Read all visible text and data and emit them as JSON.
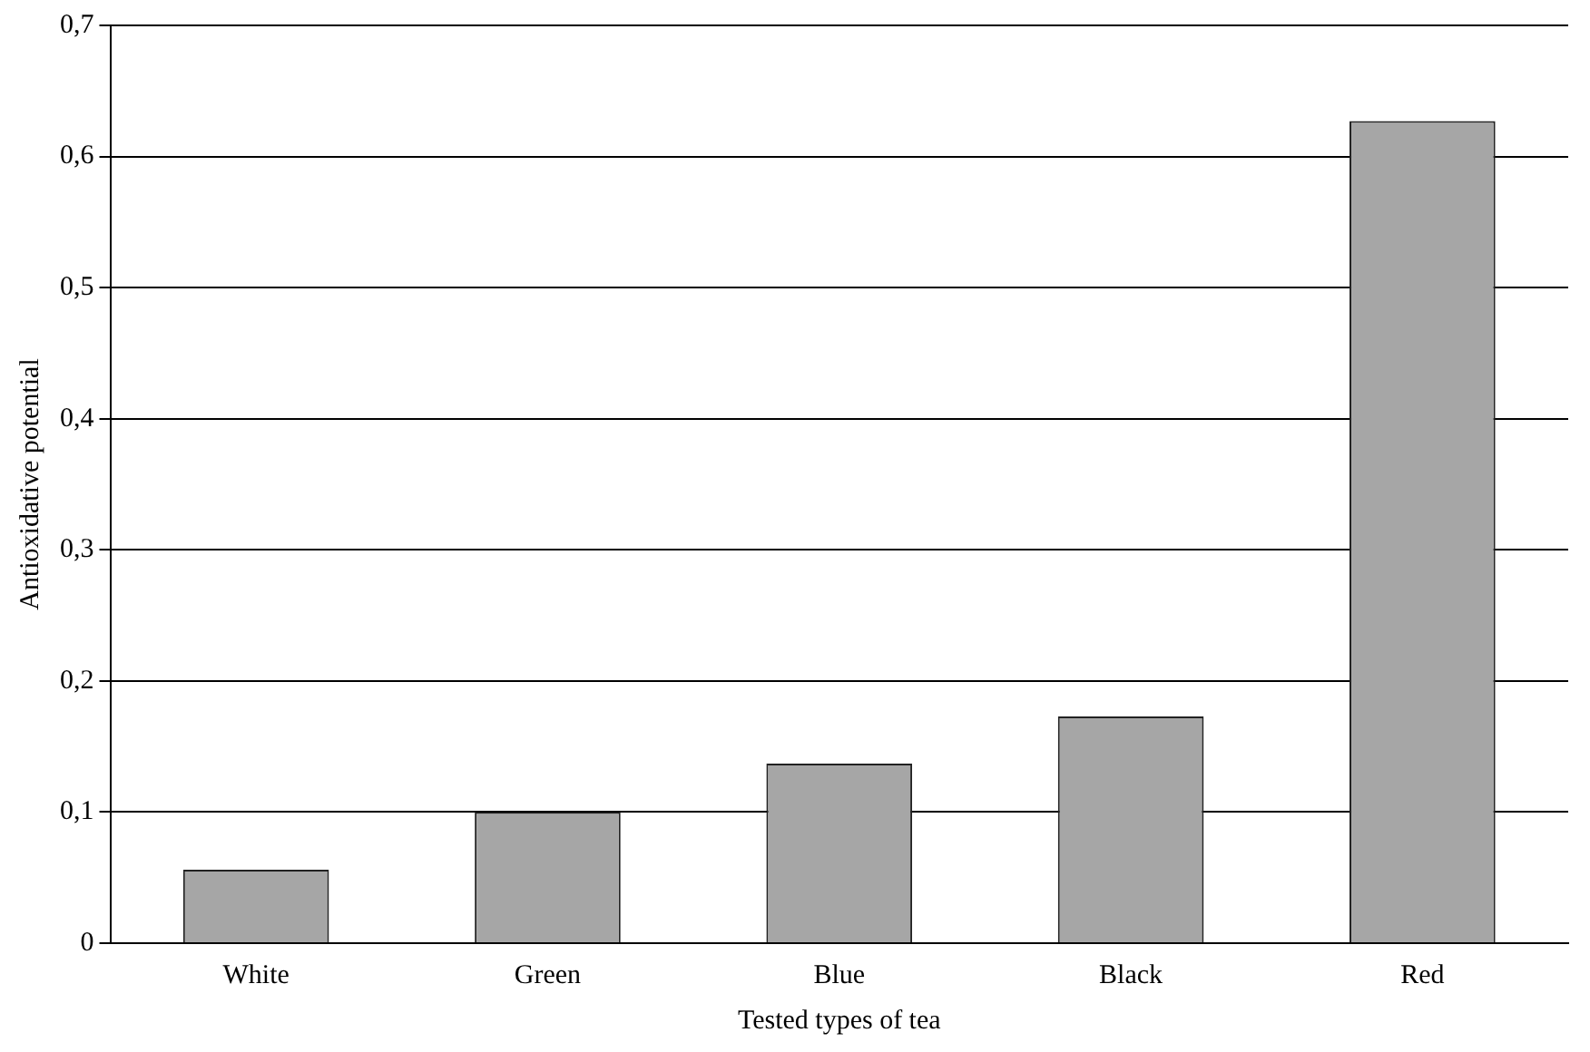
{
  "chart_data": {
    "type": "bar",
    "xlabel": "Tested types of tea",
    "ylabel": "Antioxidative potential",
    "categories": [
      "White",
      "Green",
      "Blue",
      "Black",
      "Red"
    ],
    "values": [
      0.056,
      0.1,
      0.137,
      0.173,
      0.627
    ],
    "color": "#a6a6a6",
    "ylim": [
      0,
      0.7
    ],
    "yticks": [
      0,
      {
        "value": 0.1,
        "label": "0,1"
      },
      {
        "value": 0.2,
        "label": "0,2"
      },
      {
        "value": 0.3,
        "label": "0,3"
      },
      {
        "value": 0.4,
        "label": "0,4"
      },
      {
        "value": 0.5,
        "label": "0,5"
      },
      {
        "value": 0.6,
        "label": "0,6"
      },
      {
        "value": 0.7,
        "label": "0,7"
      }
    ],
    "grid": "y",
    "legend": false
  }
}
